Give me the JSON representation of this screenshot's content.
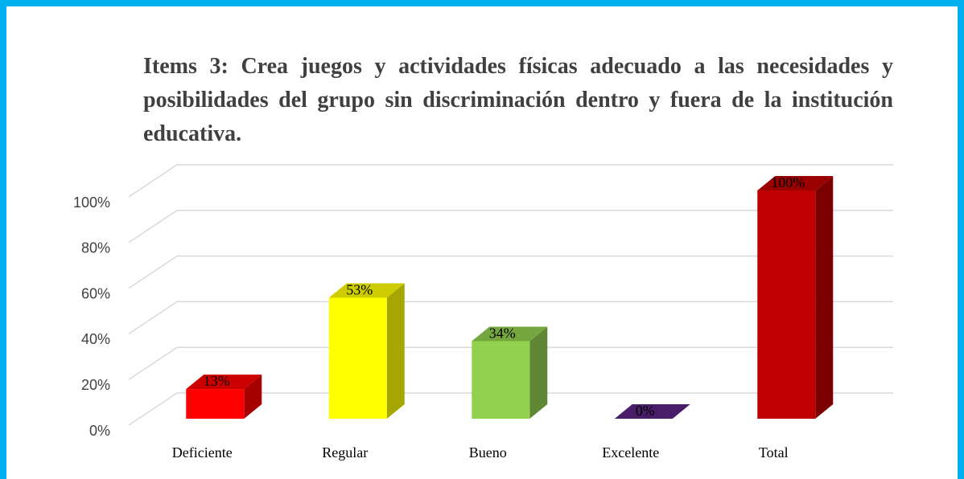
{
  "chart_data": {
    "type": "bar3d",
    "title": "Items 3: Crea juegos y actividades físicas adecuado a las necesidades y posibilidades del grupo sin discriminación dentro y fuera de la institución educativa.",
    "categories": [
      "Deficiente",
      "Regular",
      "Bueno",
      "Excelente",
      "Total"
    ],
    "values": [
      13,
      53,
      34,
      0,
      100
    ],
    "value_labels": [
      "13%",
      "53%",
      "34%",
      "0%",
      "100%"
    ],
    "colors": [
      "#ff0000",
      "#ffff00",
      "#92d050",
      "#5c2483",
      "#c00000"
    ],
    "ylim": [
      0,
      100
    ],
    "yticks": [
      {
        "value": 0,
        "label": "0%"
      },
      {
        "value": 20,
        "label": "20%"
      },
      {
        "value": 40,
        "label": "40%"
      },
      {
        "value": 60,
        "label": "60%"
      },
      {
        "value": 80,
        "label": "80%"
      },
      {
        "value": 100,
        "label": "100%"
      }
    ],
    "grid": true
  }
}
